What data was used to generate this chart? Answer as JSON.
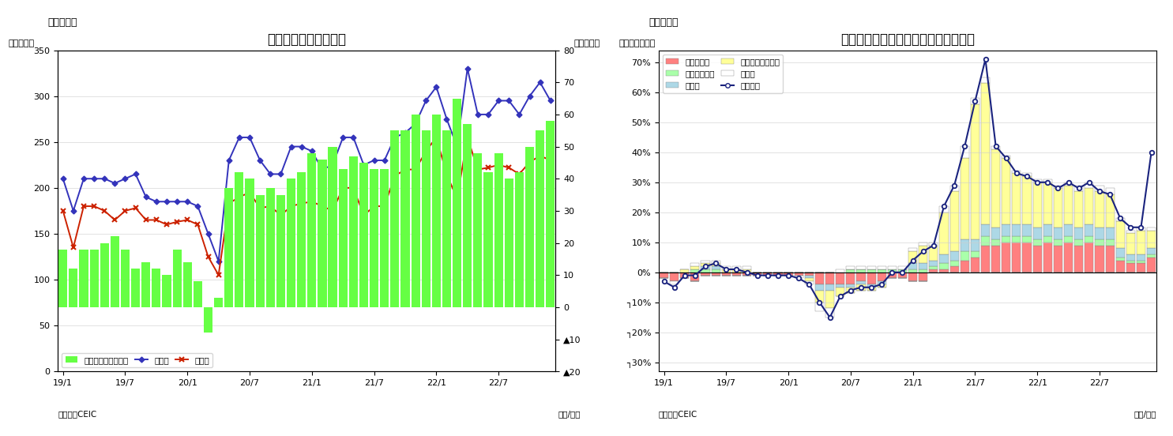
{
  "chart1": {
    "title": "マレーシア　貿易収支",
    "ylabel_left": "（億ドル）",
    "ylabel_right": "（億ドル）",
    "xlabel": "（年/月）",
    "source": "（資料）CEIC",
    "tag": "（図表７）",
    "ylim_left": [
      0,
      350
    ],
    "ylim_right": [
      -20,
      80
    ],
    "yticks_left": [
      0,
      50,
      100,
      150,
      200,
      250,
      300,
      350
    ],
    "yticks_right": [
      -20,
      -10,
      0,
      10,
      20,
      30,
      40,
      50,
      60,
      70,
      80
    ],
    "xtick_labels": [
      "19/1",
      "19/7",
      "20/1",
      "20/7",
      "21/1",
      "21/7",
      "22/1",
      "22/7"
    ],
    "bar_color": "#66FF44",
    "export_color": "#3333BB",
    "import_color": "#CC2200",
    "trade_balance": [
      18,
      12,
      18,
      18,
      20,
      22,
      18,
      12,
      14,
      12,
      10,
      18,
      14,
      8,
      -8,
      3,
      37,
      42,
      40,
      35,
      37,
      35,
      40,
      42,
      48,
      46,
      50,
      43,
      47,
      45,
      43,
      43,
      55,
      55,
      60,
      55,
      60,
      55,
      65,
      57,
      48,
      42,
      48,
      40,
      42,
      50,
      55,
      58
    ],
    "exports": [
      210,
      175,
      210,
      210,
      210,
      205,
      210,
      215,
      190,
      185,
      185,
      185,
      185,
      180,
      150,
      120,
      230,
      255,
      255,
      230,
      215,
      215,
      245,
      245,
      240,
      220,
      225,
      255,
      255,
      225,
      230,
      230,
      255,
      260,
      270,
      295,
      310,
      275,
      245,
      330,
      280,
      280,
      295,
      295,
      280,
      300,
      315,
      295
    ],
    "imports": [
      175,
      135,
      180,
      180,
      175,
      165,
      175,
      178,
      165,
      165,
      160,
      163,
      165,
      160,
      125,
      105,
      183,
      190,
      195,
      178,
      180,
      170,
      180,
      183,
      185,
      180,
      175,
      200,
      200,
      170,
      180,
      180,
      213,
      220,
      220,
      240,
      255,
      215,
      188,
      255,
      220,
      222,
      225,
      222,
      215,
      228,
      235,
      230
    ]
  },
  "chart2": {
    "title": "マレーシア　輸出の伸び率（品目別）",
    "ylabel": "（前年同月比）",
    "xlabel": "（年/月）",
    "source": "（資料）CEIC",
    "tag": "（図表８）",
    "ylim": [
      -0.33,
      0.74
    ],
    "yticks": [
      -0.3,
      -0.2,
      -0.1,
      0.0,
      0.1,
      0.2,
      0.3,
      0.4,
      0.5,
      0.6,
      0.7
    ],
    "ytick_labels": [
      "┐30%",
      "┐20%",
      "┐10%",
      "0%",
      "10%",
      "20%",
      "30%",
      "40%",
      "50%",
      "60%",
      "70%"
    ],
    "xtick_labels": [
      "19/1",
      "19/7",
      "20/1",
      "20/7",
      "21/1",
      "21/7",
      "22/1",
      "22/7"
    ],
    "colors": {
      "mineral_fuel": "#FF8080",
      "animal_veg_oil": "#AAFFAA",
      "manufactured": "#ADD8E6",
      "machinery": "#FFFF99",
      "other": "#FFFFFF",
      "total_line": "#1A237E"
    },
    "mineral_fuel": [
      -0.02,
      -0.03,
      -0.02,
      -0.03,
      -0.01,
      -0.01,
      -0.01,
      -0.01,
      -0.01,
      -0.01,
      -0.01,
      -0.01,
      -0.01,
      -0.01,
      -0.01,
      -0.04,
      -0.04,
      -0.04,
      -0.04,
      -0.03,
      -0.04,
      -0.03,
      -0.02,
      -0.02,
      -0.03,
      -0.03,
      0.01,
      0.01,
      0.02,
      0.04,
      0.05,
      0.09,
      0.09,
      0.1,
      0.1,
      0.1,
      0.09,
      0.1,
      0.09,
      0.1,
      0.09,
      0.1,
      0.09,
      0.09,
      0.04,
      0.03,
      0.03,
      0.05
    ],
    "animal_veg_oil": [
      0.0,
      0.0,
      0.0,
      0.01,
      0.01,
      0.01,
      0.0,
      0.0,
      0.0,
      0.0,
      0.0,
      0.0,
      0.0,
      0.0,
      0.0,
      0.0,
      0.0,
      0.0,
      0.01,
      0.01,
      0.01,
      0.01,
      0.01,
      0.01,
      0.01,
      0.01,
      0.01,
      0.02,
      0.02,
      0.03,
      0.02,
      0.03,
      0.02,
      0.02,
      0.02,
      0.02,
      0.02,
      0.02,
      0.02,
      0.02,
      0.02,
      0.02,
      0.02,
      0.02,
      0.01,
      0.01,
      0.01,
      0.01
    ],
    "manufactured": [
      0.0,
      0.0,
      0.0,
      0.0,
      0.01,
      0.01,
      0.0,
      0.0,
      0.0,
      0.0,
      0.0,
      0.0,
      0.0,
      0.0,
      -0.01,
      -0.02,
      -0.02,
      -0.01,
      -0.01,
      -0.01,
      -0.01,
      -0.01,
      0.0,
      0.0,
      0.02,
      0.02,
      0.02,
      0.03,
      0.03,
      0.04,
      0.04,
      0.04,
      0.04,
      0.04,
      0.04,
      0.04,
      0.04,
      0.04,
      0.04,
      0.04,
      0.04,
      0.04,
      0.04,
      0.04,
      0.03,
      0.02,
      0.02,
      0.02
    ],
    "machinery": [
      0.0,
      0.0,
      0.01,
      0.01,
      0.01,
      0.01,
      0.01,
      0.01,
      0.01,
      0.0,
      0.0,
      0.0,
      0.0,
      0.0,
      -0.01,
      -0.04,
      -0.06,
      -0.03,
      -0.02,
      -0.02,
      -0.01,
      -0.01,
      0.0,
      0.0,
      0.04,
      0.06,
      0.05,
      0.14,
      0.2,
      0.27,
      0.45,
      0.47,
      0.26,
      0.22,
      0.17,
      0.16,
      0.15,
      0.14,
      0.13,
      0.13,
      0.12,
      0.12,
      0.12,
      0.11,
      0.09,
      0.07,
      0.08,
      0.06
    ],
    "other": [
      0.0,
      -0.01,
      0.0,
      0.01,
      0.01,
      0.01,
      0.01,
      0.01,
      0.01,
      0.0,
      0.0,
      0.0,
      0.0,
      -0.01,
      -0.01,
      -0.03,
      -0.03,
      0.01,
      0.01,
      0.01,
      0.01,
      0.01,
      0.01,
      0.01,
      0.01,
      0.01,
      0.01,
      0.02,
      0.02,
      0.04,
      0.02,
      0.02,
      0.01,
      0.01,
      0.01,
      0.01,
      0.01,
      0.01,
      0.01,
      0.01,
      0.02,
      0.02,
      0.02,
      0.02,
      0.01,
      0.01,
      0.01,
      0.01
    ],
    "total_line": [
      -0.03,
      -0.05,
      -0.01,
      -0.01,
      0.02,
      0.03,
      0.01,
      0.01,
      0.0,
      -0.01,
      -0.01,
      -0.01,
      -0.01,
      -0.02,
      -0.04,
      -0.1,
      -0.15,
      -0.08,
      -0.06,
      -0.05,
      -0.05,
      -0.04,
      0.0,
      0.0,
      0.04,
      0.07,
      0.09,
      0.22,
      0.29,
      0.42,
      0.57,
      0.71,
      0.42,
      0.38,
      0.33,
      0.32,
      0.3,
      0.3,
      0.28,
      0.3,
      0.28,
      0.3,
      0.27,
      0.26,
      0.18,
      0.15,
      0.15,
      0.4
    ]
  }
}
